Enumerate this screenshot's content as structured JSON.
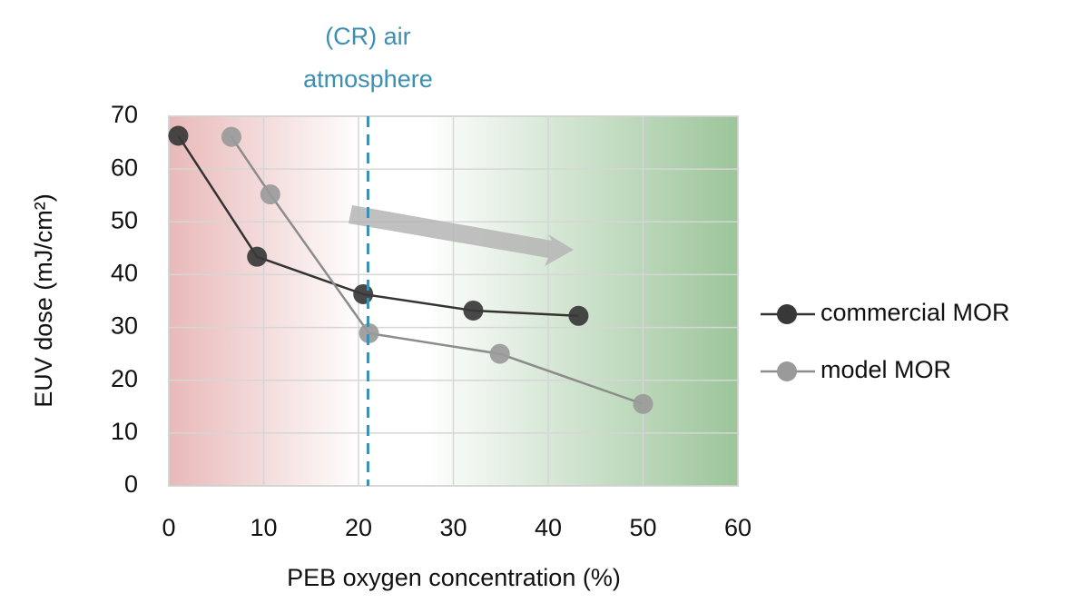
{
  "chart_data": {
    "type": "line",
    "x_label": "PEB oxygen concentration (%)",
    "y_label": "EUV dose (mJ/cm²)",
    "xlim": [
      0,
      60
    ],
    "xticks": [
      0,
      10,
      20,
      30,
      40,
      50,
      60
    ],
    "ylim": [
      0,
      70
    ],
    "yticks": [
      0,
      10,
      20,
      30,
      40,
      50,
      60,
      70
    ],
    "grid": true,
    "legend": "right",
    "reference_line": {
      "x": 21,
      "color": "#3a8fb2",
      "label_lines": [
        "(CR) air",
        "atmosphere"
      ]
    },
    "series": [
      {
        "name": "commercial MOR",
        "color": "#383838",
        "line_color": "#333333",
        "x": [
          1,
          9.3,
          20.5,
          32.1,
          43.2
        ],
        "values": [
          66.3,
          43.4,
          36.3,
          33.2,
          32.2
        ]
      },
      {
        "name": "model MOR",
        "color": "#9a9a9a",
        "line_color": "#8c8c8c",
        "x": [
          6.6,
          10.7,
          21.1,
          34.9,
          50
        ],
        "values": [
          66.1,
          55.2,
          28.9,
          25.0,
          15.5
        ]
      }
    ]
  }
}
